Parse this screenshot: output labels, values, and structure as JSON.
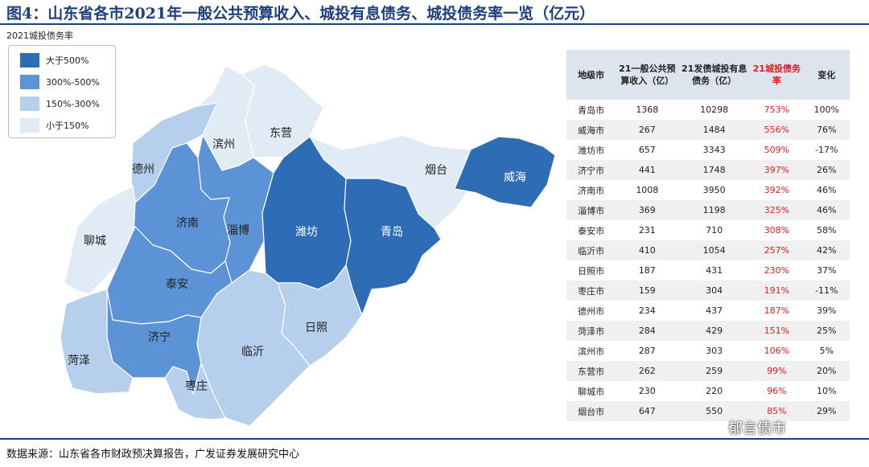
{
  "figure": {
    "title": "图4：山东省各市2021年一般公共预算收入、城投有息债务、城投债务率一览（亿元）",
    "source": "数据来源：山东省各市财政预决算报告，广发证券发展研究中心",
    "watermark": "郁言债市"
  },
  "map": {
    "label": "2021城投债务率",
    "legend": [
      {
        "label": "大于500%",
        "color": "#2e6db5"
      },
      {
        "label": "300%-500%",
        "color": "#5b93d6"
      },
      {
        "label": "150%-300%",
        "color": "#b6cfec"
      },
      {
        "label": "小于150%",
        "color": "#e1ebf6"
      }
    ],
    "regions": [
      {
        "name": "德州",
        "class": "150%-300%"
      },
      {
        "name": "滨州",
        "class": "小于150%"
      },
      {
        "name": "东营",
        "class": "小于150%"
      },
      {
        "name": "烟台",
        "class": "小于150%"
      },
      {
        "name": "威海",
        "class": "大于500%"
      },
      {
        "name": "聊城",
        "class": "小于150%"
      },
      {
        "name": "济南",
        "class": "300%-500%"
      },
      {
        "name": "淄博",
        "class": "300%-500%"
      },
      {
        "name": "潍坊",
        "class": "大于500%"
      },
      {
        "name": "青岛",
        "class": "大于500%"
      },
      {
        "name": "泰安",
        "class": "300%-500%"
      },
      {
        "name": "济宁",
        "class": "300%-500%"
      },
      {
        "name": "菏泽",
        "class": "150%-300%"
      },
      {
        "name": "临沂",
        "class": "150%-300%"
      },
      {
        "name": "日照",
        "class": "150%-300%"
      },
      {
        "name": "枣庄",
        "class": "150%-300%"
      }
    ]
  },
  "chart_data": {
    "type": "table",
    "columns": [
      "地级市",
      "21一般公共预算收入（亿）",
      "21发债城投有息债务（亿）",
      "21城投债务率",
      "变化"
    ],
    "rows": [
      [
        "青岛市",
        "1368",
        "10298",
        "753%",
        "100%"
      ],
      [
        "威海市",
        "267",
        "1484",
        "556%",
        "76%"
      ],
      [
        "潍坊市",
        "657",
        "3343",
        "509%",
        "-17%"
      ],
      [
        "济宁市",
        "441",
        "1748",
        "397%",
        "26%"
      ],
      [
        "济南市",
        "1008",
        "3950",
        "392%",
        "46%"
      ],
      [
        "淄博市",
        "369",
        "1198",
        "325%",
        "46%"
      ],
      [
        "泰安市",
        "231",
        "710",
        "308%",
        "58%"
      ],
      [
        "临沂市",
        "410",
        "1054",
        "257%",
        "42%"
      ],
      [
        "日照市",
        "187",
        "431",
        "230%",
        "37%"
      ],
      [
        "枣庄市",
        "159",
        "304",
        "191%",
        "-11%"
      ],
      [
        "德州市",
        "234",
        "437",
        "187%",
        "39%"
      ],
      [
        "菏泽市",
        "284",
        "429",
        "151%",
        "25%"
      ],
      [
        "滨州市",
        "287",
        "303",
        "106%",
        "5%"
      ],
      [
        "东营市",
        "262",
        "259",
        "99%",
        "20%"
      ],
      [
        "聊城市",
        "230",
        "220",
        "96%",
        "10%"
      ],
      [
        "烟台市",
        "647",
        "550",
        "85%",
        "29%"
      ]
    ]
  }
}
